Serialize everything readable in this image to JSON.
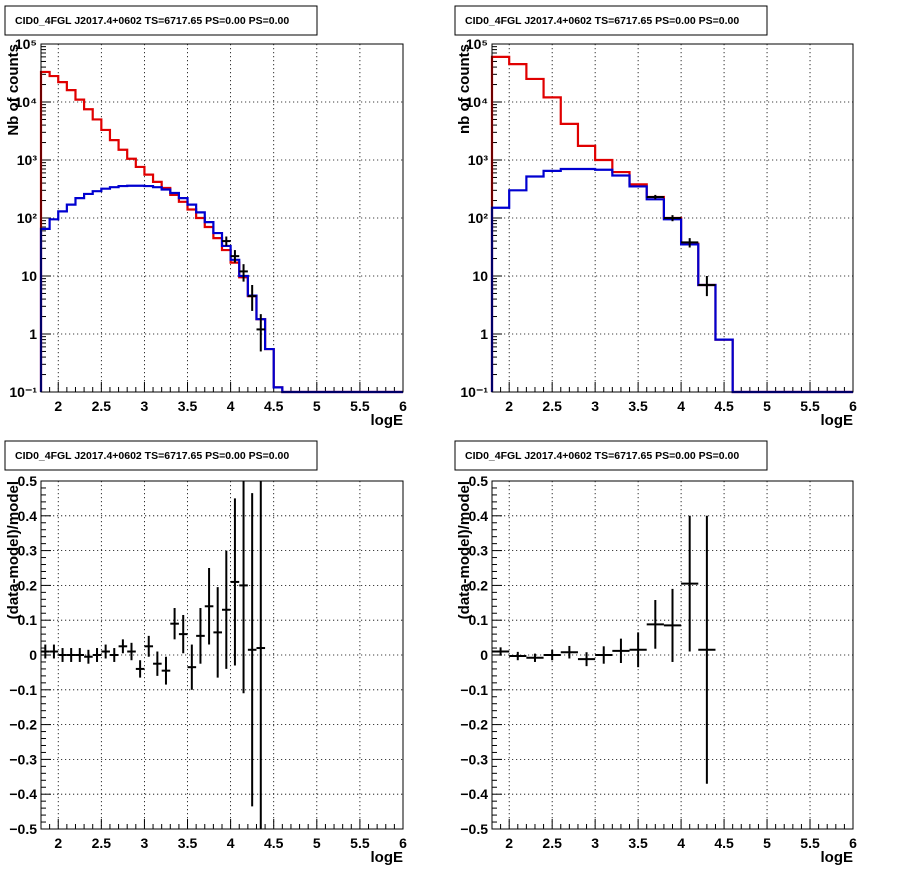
{
  "chart_data": [
    {
      "type": "line",
      "title": "CID0_4FGL J2017.4+0602 TS=6717.65 PS=0.00 PS=0.00",
      "xlabel": "logE",
      "ylabel": "Nb of counts",
      "xscale": "linear",
      "yscale": "log",
      "xlim": [
        1.8,
        6
      ],
      "ylim": [
        0.1,
        100000
      ],
      "xticks": [
        "2",
        "2.5",
        "3",
        "3.5",
        "4",
        "4.5",
        "5",
        "5.5",
        "6"
      ],
      "yticks": [
        "10⁻¹",
        "1",
        "10",
        "10²",
        "10³",
        "10⁴",
        "10⁵"
      ],
      "grid": true,
      "bin_edges": [
        1.8,
        1.9,
        2.0,
        2.1,
        2.2,
        2.3,
        2.4,
        2.5,
        2.6,
        2.7,
        2.8,
        2.9,
        3.0,
        3.1,
        3.2,
        3.3,
        3.4,
        3.5,
        3.6,
        3.7,
        3.8,
        3.9,
        4.0,
        4.1,
        4.2,
        4.3,
        4.4,
        4.5,
        4.6,
        4.7,
        4.8,
        4.9,
        5.0,
        5.1,
        5.2,
        5.3,
        5.4,
        5.5,
        5.6,
        5.7,
        5.8,
        5.9,
        6.0
      ],
      "series": [
        {
          "color": "#e00000",
          "style": "step",
          "values": [
            33000,
            28000,
            22000,
            16000,
            11000,
            7500,
            5000,
            3300,
            2200,
            1500,
            1050,
            760,
            560,
            420,
            330,
            250,
            190,
            140,
            100,
            70,
            45,
            28,
            17,
            9.5,
            4.5,
            1.8,
            0.55,
            0.12,
            0.1,
            0.1,
            0.1,
            0.1,
            0.1,
            0.1,
            0.1,
            0.1,
            0.1,
            0.1,
            0.1,
            0.1,
            0.1,
            0.1
          ]
        },
        {
          "color": "#0000d0",
          "style": "step",
          "values": [
            65,
            95,
            130,
            170,
            220,
            260,
            290,
            320,
            340,
            355,
            360,
            360,
            355,
            340,
            310,
            270,
            220,
            170,
            125,
            85,
            55,
            33,
            19,
            10,
            4.6,
            1.8,
            0.55,
            0.12,
            0.1,
            0.1,
            0.1,
            0.1,
            0.1,
            0.1,
            0.1,
            0.1,
            0.1,
            0.1,
            0.1,
            0.1,
            0.1,
            0.1
          ]
        }
      ],
      "points": [
        {
          "x": 3.95,
          "y": 40,
          "lo": 33,
          "hi": 48
        },
        {
          "x": 4.05,
          "y": 22,
          "lo": 17,
          "hi": 28
        },
        {
          "x": 4.15,
          "y": 12,
          "lo": 8,
          "hi": 16
        },
        {
          "x": 4.25,
          "y": 4.5,
          "lo": 2.5,
          "hi": 7
        },
        {
          "x": 4.35,
          "y": 1.2,
          "lo": 0.5,
          "hi": 2.2
        }
      ]
    },
    {
      "type": "line",
      "title": "CID0_4FGL J2017.4+0602 TS=6717.65 PS=0.00 PS=0.00",
      "xlabel": "logE",
      "ylabel": "nb of counts",
      "xscale": "linear",
      "yscale": "log",
      "xlim": [
        1.8,
        6
      ],
      "ylim": [
        0.1,
        100000
      ],
      "xticks": [
        "2",
        "2.5",
        "3",
        "3.5",
        "4",
        "4.5",
        "5",
        "5.5",
        "6"
      ],
      "yticks": [
        "10⁻¹",
        "1",
        "10",
        "10²",
        "10³",
        "10⁴",
        "10⁵"
      ],
      "grid": true,
      "bin_edges": [
        1.8,
        2.0,
        2.2,
        2.4,
        2.6,
        2.8,
        3.0,
        3.2,
        3.4,
        3.6,
        3.8,
        4.0,
        4.2,
        4.4,
        4.6,
        4.8,
        5.0,
        5.2,
        5.4,
        5.6,
        5.8,
        6.0
      ],
      "series": [
        {
          "color": "#e00000",
          "style": "step",
          "values": [
            60000,
            45000,
            25000,
            12000,
            4200,
            1750,
            1000,
            620,
            380,
            230,
            100,
            36,
            7,
            0.8,
            0.1,
            0.1,
            0.1,
            0.1,
            0.1,
            0.1,
            0.1
          ]
        },
        {
          "color": "#0000d0",
          "style": "step",
          "values": [
            150,
            300,
            520,
            650,
            700,
            700,
            680,
            540,
            350,
            210,
            95,
            35,
            7,
            0.8,
            0.1,
            0.1,
            0.1,
            0.1,
            0.1,
            0.1,
            0.1
          ]
        }
      ],
      "points": [
        {
          "x": 3.7,
          "y": 230,
          "lo": 210,
          "hi": 250
        },
        {
          "x": 3.9,
          "y": 100,
          "lo": 88,
          "hi": 112
        },
        {
          "x": 4.1,
          "y": 38,
          "lo": 31,
          "hi": 45
        },
        {
          "x": 4.3,
          "y": 7,
          "lo": 4.5,
          "hi": 10
        }
      ]
    },
    {
      "type": "scatter",
      "title": "CID0_4FGL J2017.4+0602 TS=6717.65 PS=0.00 PS=0.00",
      "xlabel": "logE",
      "ylabel": "(data-model)/model",
      "xscale": "linear",
      "yscale": "linear",
      "xlim": [
        1.8,
        6
      ],
      "ylim": [
        -0.5,
        0.5
      ],
      "xticks": [
        "2",
        "2.5",
        "3",
        "3.5",
        "4",
        "4.5",
        "5",
        "5.5",
        "6"
      ],
      "yticks": [
        "−0.5",
        "−0.4",
        "−0.3",
        "−0.2",
        "−0.1",
        "0",
        "0.1",
        "0.2",
        "0.3",
        "0.4",
        "0.5"
      ],
      "grid": true,
      "points": [
        {
          "x": 1.85,
          "y": 0.01,
          "err": 0.02
        },
        {
          "x": 1.95,
          "y": 0.01,
          "err": 0.02
        },
        {
          "x": 2.05,
          "y": 0.0,
          "err": 0.02
        },
        {
          "x": 2.15,
          "y": 0.0,
          "err": 0.02
        },
        {
          "x": 2.25,
          "y": 0.0,
          "err": 0.02
        },
        {
          "x": 2.35,
          "y": -0.005,
          "err": 0.02
        },
        {
          "x": 2.45,
          "y": 0.0,
          "err": 0.02
        },
        {
          "x": 2.55,
          "y": 0.01,
          "err": 0.02
        },
        {
          "x": 2.65,
          "y": 0.0,
          "err": 0.02
        },
        {
          "x": 2.75,
          "y": 0.025,
          "err": 0.02
        },
        {
          "x": 2.85,
          "y": 0.01,
          "err": 0.025
        },
        {
          "x": 2.95,
          "y": -0.04,
          "err": 0.025
        },
        {
          "x": 3.05,
          "y": 0.025,
          "err": 0.03
        },
        {
          "x": 3.15,
          "y": -0.025,
          "err": 0.035
        },
        {
          "x": 3.25,
          "y": -0.045,
          "err": 0.04
        },
        {
          "x": 3.35,
          "y": 0.09,
          "err": 0.045
        },
        {
          "x": 3.45,
          "y": 0.06,
          "err": 0.055
        },
        {
          "x": 3.55,
          "y": -0.035,
          "err": 0.065
        },
        {
          "x": 3.65,
          "y": 0.055,
          "err": 0.08
        },
        {
          "x": 3.75,
          "y": 0.14,
          "err": 0.11
        },
        {
          "x": 3.85,
          "y": 0.065,
          "err": 0.13
        },
        {
          "x": 3.95,
          "y": 0.13,
          "err": 0.17
        },
        {
          "x": 4.05,
          "y": 0.21,
          "err": 0.24
        },
        {
          "x": 4.15,
          "y": 0.2,
          "err": 0.31
        },
        {
          "x": 4.25,
          "y": 0.015,
          "err": 0.45
        },
        {
          "x": 4.35,
          "y": 0.02,
          "err": 0.6
        }
      ]
    },
    {
      "type": "scatter",
      "title": "CID0_4FGL J2017.4+0602 TS=6717.65 PS=0.00 PS=0.00",
      "xlabel": "logE",
      "ylabel": "(data-model)/model",
      "xscale": "linear",
      "yscale": "linear",
      "xlim": [
        1.8,
        6
      ],
      "ylim": [
        -0.5,
        0.5
      ],
      "xticks": [
        "2",
        "2.5",
        "3",
        "3.5",
        "4",
        "4.5",
        "5",
        "5.5",
        "6"
      ],
      "yticks": [
        "−0.5",
        "−0.4",
        "−0.3",
        "−0.2",
        "−0.1",
        "0",
        "0.1",
        "0.2",
        "0.3",
        "0.4",
        "0.5"
      ],
      "grid": true,
      "points": [
        {
          "x": 1.9,
          "y": 0.01,
          "err": 0.012
        },
        {
          "x": 2.1,
          "y": -0.003,
          "err": 0.012
        },
        {
          "x": 2.3,
          "y": -0.008,
          "err": 0.012
        },
        {
          "x": 2.5,
          "y": 0.0,
          "err": 0.015
        },
        {
          "x": 2.7,
          "y": 0.008,
          "err": 0.018
        },
        {
          "x": 2.9,
          "y": -0.012,
          "err": 0.02
        },
        {
          "x": 3.1,
          "y": 0.0,
          "err": 0.025
        },
        {
          "x": 3.3,
          "y": 0.012,
          "err": 0.035
        },
        {
          "x": 3.5,
          "y": 0.015,
          "err": 0.05
        },
        {
          "x": 3.7,
          "y": 0.088,
          "err": 0.07
        },
        {
          "x": 3.9,
          "y": 0.085,
          "err": 0.105
        },
        {
          "x": 4.1,
          "y": 0.205,
          "err": 0.195
        },
        {
          "x": 4.3,
          "y": 0.015,
          "err": 0.385
        }
      ]
    }
  ]
}
